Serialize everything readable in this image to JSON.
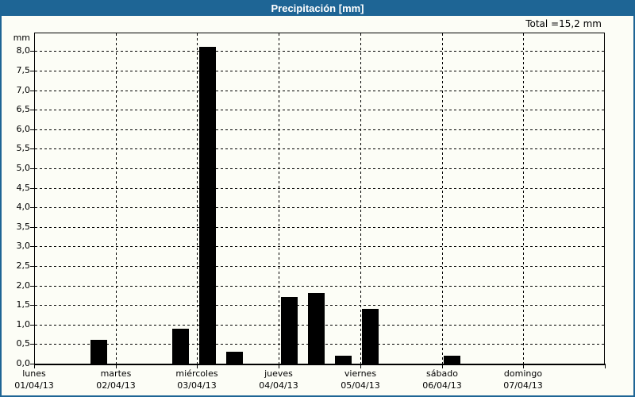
{
  "window": {
    "title": "Precipitación [mm]"
  },
  "header": {
    "total_label": "Total =15,2 mm"
  },
  "colors": {
    "frame_blue": "#1E6595",
    "title_text": "#FFFFFF",
    "bar_color": "#000000",
    "background": "#FCFDF6",
    "grid_color": "#000000"
  },
  "chart_data": {
    "type": "bar",
    "title": "Precipitación [mm]",
    "ylabel": "mm",
    "xlabel": "",
    "ylim": [
      0,
      8.5
    ],
    "y_tick_step": 0.5,
    "y_tick_labels": [
      "0,0",
      "0,5",
      "1,0",
      "1,5",
      "2,0",
      "2,5",
      "3,0",
      "3,5",
      "4,0",
      "4,5",
      "5,0",
      "5,5",
      "6,0",
      "6,5",
      "7,0",
      "7,5",
      "8,0"
    ],
    "y_unit_label": "mm",
    "grid": "dashed horizontal lines every 0.5 mm; dashed vertical lines at day boundaries",
    "legend_position": "none",
    "total_mm": 15.2,
    "slots_per_day": 3,
    "x_days": [
      {
        "name": "lunes",
        "date": "01/04/13"
      },
      {
        "name": "martes",
        "date": "02/04/13"
      },
      {
        "name": "miércoles",
        "date": "03/04/13"
      },
      {
        "name": "jueves",
        "date": "04/04/13"
      },
      {
        "name": "viernes",
        "date": "05/04/13"
      },
      {
        "name": "sábado",
        "date": "06/04/13"
      },
      {
        "name": "domingo",
        "date": "07/04/13"
      }
    ],
    "bars": [
      {
        "day": "lunes",
        "date": "01/04/13",
        "slot": 2,
        "value": 0.6
      },
      {
        "day": "martes",
        "date": "02/04/13",
        "slot": 5,
        "value": 0.9
      },
      {
        "day": "miércoles",
        "date": "03/04/13",
        "slot": 6,
        "value": 8.1
      },
      {
        "day": "miércoles",
        "date": "03/04/13",
        "slot": 7,
        "value": 0.3
      },
      {
        "day": "jueves",
        "date": "04/04/13",
        "slot": 9,
        "value": 1.7
      },
      {
        "day": "jueves",
        "date": "04/04/13",
        "slot": 10,
        "value": 1.8
      },
      {
        "day": "jueves",
        "date": "04/04/13",
        "slot": 11,
        "value": 0.2
      },
      {
        "day": "viernes",
        "date": "05/04/13",
        "slot": 12,
        "value": 1.4
      },
      {
        "day": "sábado",
        "date": "06/04/13",
        "slot": 15,
        "value": 0.2
      }
    ]
  }
}
